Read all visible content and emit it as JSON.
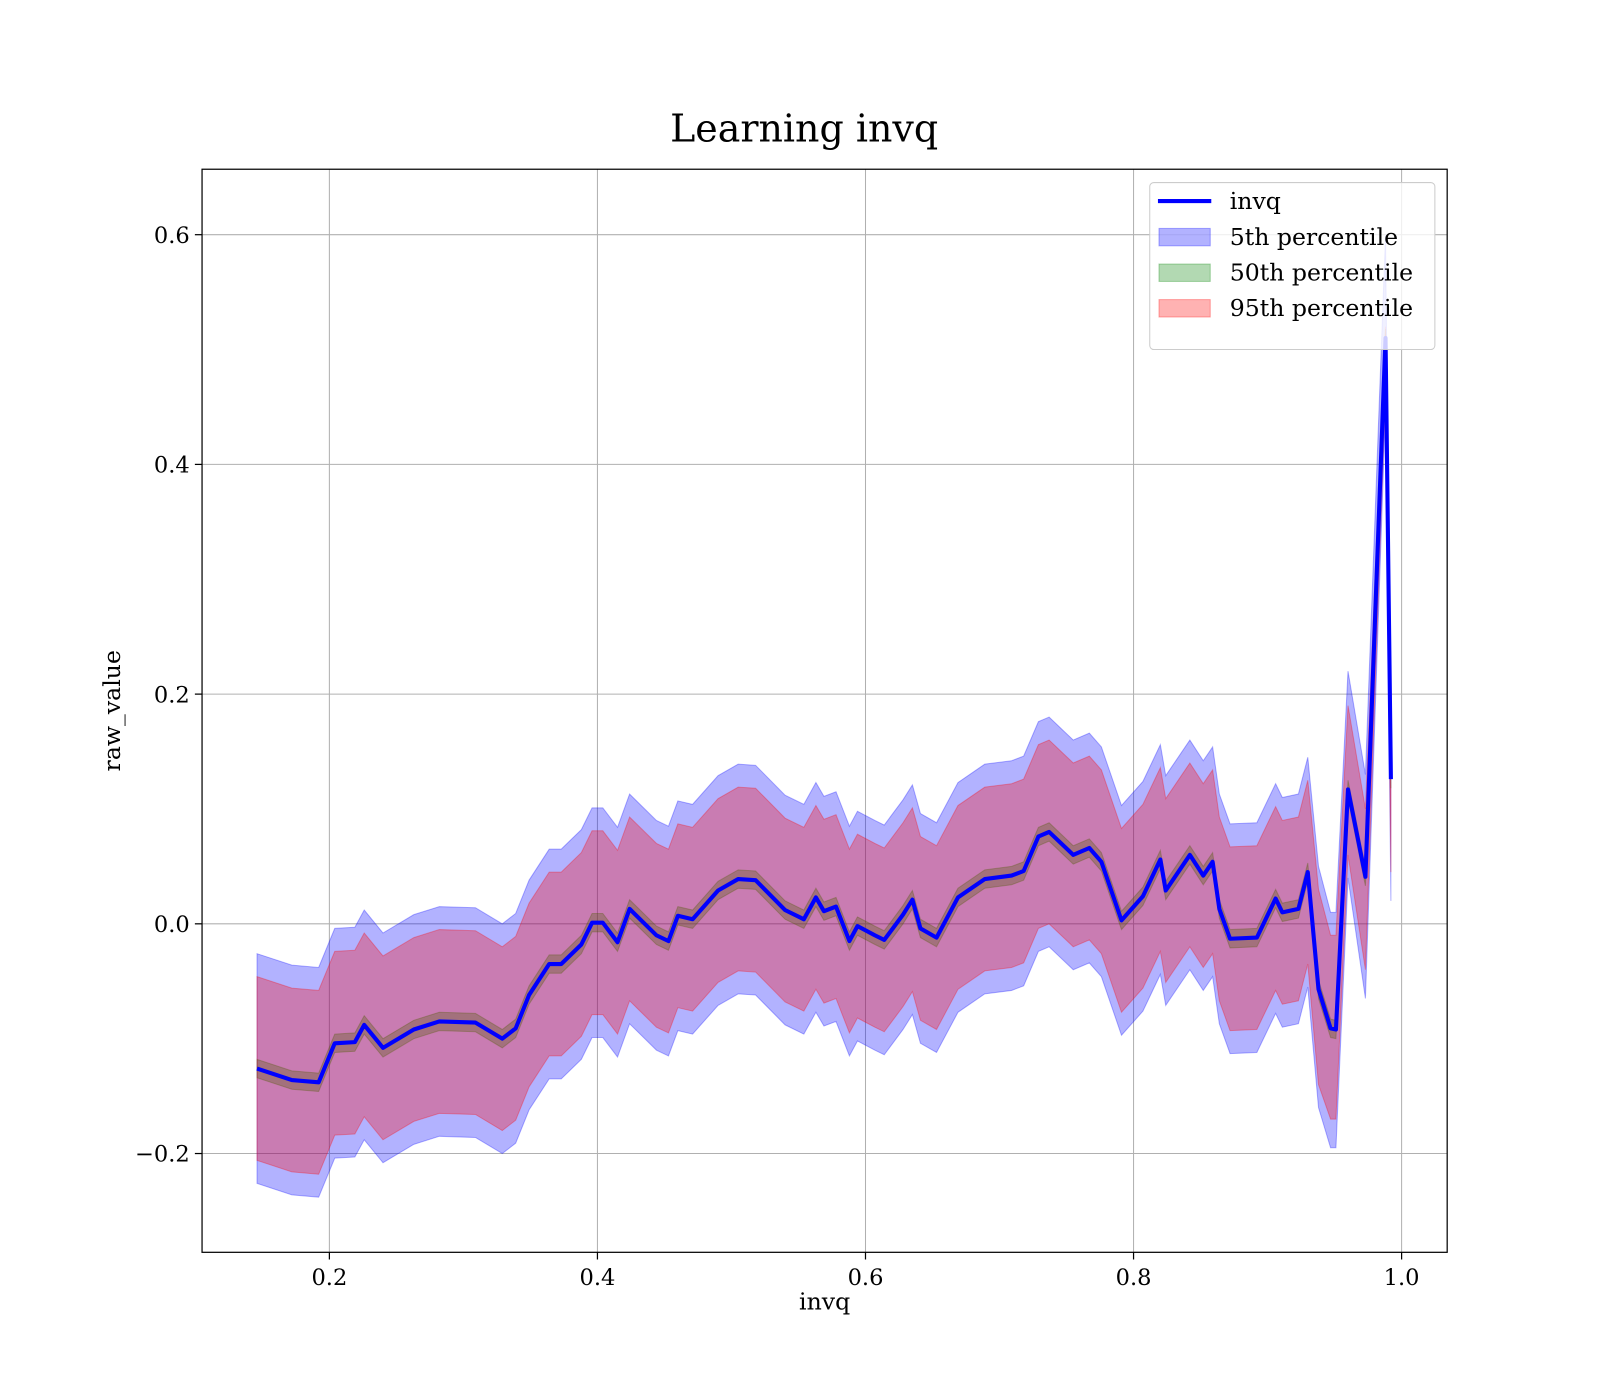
{
  "chart_data": {
    "type": "line",
    "title": "Learning invq",
    "xlabel": "invq",
    "ylabel": "raw_value",
    "x": [
      0.146,
      0.172,
      0.192,
      0.204,
      0.219,
      0.226,
      0.24,
      0.263,
      0.282,
      0.309,
      0.329,
      0.339,
      0.349,
      0.364,
      0.373,
      0.388,
      0.396,
      0.404,
      0.415,
      0.424,
      0.444,
      0.453,
      0.46,
      0.471,
      0.49,
      0.505,
      0.518,
      0.54,
      0.554,
      0.563,
      0.569,
      0.578,
      0.588,
      0.594,
      0.607,
      0.614,
      0.628,
      0.635,
      0.641,
      0.653,
      0.669,
      0.689,
      0.709,
      0.718,
      0.729,
      0.737,
      0.755,
      0.767,
      0.776,
      0.791,
      0.807,
      0.82,
      0.824,
      0.842,
      0.852,
      0.859,
      0.864,
      0.872,
      0.892,
      0.906,
      0.911,
      0.923,
      0.93,
      0.938,
      0.947,
      0.951,
      0.96,
      0.973,
      0.988,
      0.992
    ],
    "series": [
      {
        "name": "invq",
        "color": "#0000ff",
        "values": [
          -0.126,
          -0.136,
          -0.138,
          -0.104,
          -0.103,
          -0.088,
          -0.108,
          -0.092,
          -0.085,
          -0.086,
          -0.1,
          -0.091,
          -0.062,
          -0.035,
          -0.035,
          -0.018,
          0.001,
          0.001,
          -0.016,
          0.013,
          -0.01,
          -0.015,
          0.007,
          0.004,
          0.029,
          0.039,
          0.038,
          0.012,
          0.004,
          0.023,
          0.011,
          0.015,
          -0.015,
          -0.002,
          -0.01,
          -0.014,
          0.008,
          0.021,
          -0.004,
          -0.012,
          0.023,
          0.039,
          0.042,
          0.046,
          0.076,
          0.08,
          0.06,
          0.066,
          0.054,
          0.003,
          0.024,
          0.056,
          0.029,
          0.06,
          0.042,
          0.054,
          0.013,
          -0.013,
          -0.012,
          0.022,
          0.01,
          0.013,
          0.045,
          -0.057,
          -0.091,
          -0.092,
          0.117,
          0.041,
          0.51,
          0.126
        ]
      }
    ],
    "bands": [
      {
        "name": "5th percentile",
        "color": "#0000ff",
        "upper": [
          -0.026,
          -0.036,
          -0.038,
          -0.004,
          -0.003,
          0.012,
          -0.008,
          0.008,
          0.015,
          0.014,
          0.0,
          0.009,
          0.038,
          0.065,
          0.065,
          0.082,
          0.101,
          0.101,
          0.084,
          0.113,
          0.09,
          0.085,
          0.107,
          0.104,
          0.129,
          0.139,
          0.138,
          0.112,
          0.104,
          0.123,
          0.111,
          0.115,
          0.085,
          0.098,
          0.09,
          0.086,
          0.108,
          0.121,
          0.096,
          0.088,
          0.123,
          0.139,
          0.142,
          0.146,
          0.176,
          0.18,
          0.16,
          0.166,
          0.154,
          0.103,
          0.124,
          0.156,
          0.129,
          0.16,
          0.142,
          0.154,
          0.113,
          0.087,
          0.088,
          0.122,
          0.11,
          0.113,
          0.145,
          0.05,
          0.01,
          0.01,
          0.22,
          0.13,
          0.6,
          0.13
        ],
        "lower": [
          -0.226,
          -0.236,
          -0.238,
          -0.204,
          -0.203,
          -0.188,
          -0.208,
          -0.192,
          -0.185,
          -0.186,
          -0.2,
          -0.191,
          -0.162,
          -0.135,
          -0.135,
          -0.118,
          -0.099,
          -0.099,
          -0.116,
          -0.087,
          -0.11,
          -0.115,
          -0.093,
          -0.096,
          -0.071,
          -0.061,
          -0.062,
          -0.088,
          -0.096,
          -0.077,
          -0.089,
          -0.085,
          -0.115,
          -0.102,
          -0.11,
          -0.114,
          -0.092,
          -0.079,
          -0.104,
          -0.112,
          -0.077,
          -0.061,
          -0.058,
          -0.054,
          -0.024,
          -0.02,
          -0.04,
          -0.034,
          -0.046,
          -0.097,
          -0.076,
          -0.044,
          -0.071,
          -0.04,
          -0.058,
          -0.046,
          -0.087,
          -0.113,
          -0.112,
          -0.078,
          -0.09,
          -0.087,
          -0.055,
          -0.16,
          -0.195,
          -0.195,
          0.04,
          -0.065,
          0.45,
          0.02
        ]
      },
      {
        "name": "50th percentile",
        "color": "#008000",
        "upper": [
          -0.118,
          -0.128,
          -0.13,
          -0.096,
          -0.095,
          -0.08,
          -0.1,
          -0.084,
          -0.077,
          -0.078,
          -0.092,
          -0.083,
          -0.054,
          -0.027,
          -0.027,
          -0.01,
          0.009,
          0.009,
          -0.008,
          0.021,
          -0.002,
          -0.007,
          0.015,
          0.012,
          0.037,
          0.047,
          0.046,
          0.02,
          0.012,
          0.031,
          0.019,
          0.023,
          -0.007,
          0.006,
          -0.002,
          -0.006,
          0.016,
          0.029,
          0.004,
          -0.004,
          0.031,
          0.047,
          0.05,
          0.054,
          0.084,
          0.088,
          0.068,
          0.074,
          0.062,
          0.011,
          0.032,
          0.064,
          0.037,
          0.068,
          0.05,
          0.062,
          0.021,
          -0.005,
          -0.004,
          0.03,
          0.018,
          0.021,
          0.053,
          -0.049,
          -0.083,
          -0.084,
          0.125,
          0.049,
          0.518,
          0.134
        ],
        "lower": [
          -0.134,
          -0.144,
          -0.146,
          -0.112,
          -0.111,
          -0.096,
          -0.116,
          -0.1,
          -0.093,
          -0.094,
          -0.108,
          -0.099,
          -0.07,
          -0.043,
          -0.043,
          -0.026,
          -0.007,
          -0.007,
          -0.024,
          0.005,
          -0.018,
          -0.023,
          -0.001,
          -0.004,
          0.021,
          0.031,
          0.03,
          0.004,
          -0.004,
          0.015,
          0.003,
          0.007,
          -0.023,
          -0.01,
          -0.018,
          -0.022,
          0.0,
          0.013,
          -0.012,
          -0.02,
          0.015,
          0.031,
          0.034,
          0.038,
          0.068,
          0.072,
          0.052,
          0.058,
          0.046,
          -0.005,
          0.016,
          0.048,
          0.021,
          0.052,
          0.034,
          0.046,
          0.005,
          -0.021,
          -0.02,
          0.014,
          0.002,
          0.005,
          0.037,
          -0.065,
          -0.099,
          -0.1,
          0.109,
          0.033,
          0.502,
          0.118
        ]
      },
      {
        "name": "95th percentile",
        "color": "#ff0000",
        "upper": [
          -0.046,
          -0.056,
          -0.058,
          -0.024,
          -0.023,
          -0.008,
          -0.028,
          -0.012,
          -0.005,
          -0.006,
          -0.02,
          -0.011,
          0.018,
          0.045,
          0.045,
          0.062,
          0.081,
          0.081,
          0.064,
          0.093,
          0.07,
          0.065,
          0.087,
          0.084,
          0.109,
          0.119,
          0.118,
          0.092,
          0.084,
          0.103,
          0.091,
          0.095,
          0.065,
          0.078,
          0.07,
          0.066,
          0.088,
          0.101,
          0.076,
          0.068,
          0.103,
          0.119,
          0.122,
          0.126,
          0.156,
          0.16,
          0.14,
          0.146,
          0.134,
          0.083,
          0.104,
          0.136,
          0.109,
          0.14,
          0.122,
          0.134,
          0.093,
          0.067,
          0.068,
          0.102,
          0.09,
          0.093,
          0.125,
          0.03,
          -0.01,
          -0.01,
          0.19,
          0.1,
          0.52,
          0.12
        ],
        "lower": [
          -0.206,
          -0.216,
          -0.218,
          -0.184,
          -0.183,
          -0.168,
          -0.188,
          -0.172,
          -0.165,
          -0.166,
          -0.18,
          -0.171,
          -0.142,
          -0.115,
          -0.115,
          -0.098,
          -0.079,
          -0.079,
          -0.096,
          -0.067,
          -0.09,
          -0.095,
          -0.073,
          -0.076,
          -0.051,
          -0.041,
          -0.042,
          -0.068,
          -0.076,
          -0.057,
          -0.069,
          -0.065,
          -0.095,
          -0.082,
          -0.09,
          -0.094,
          -0.072,
          -0.059,
          -0.084,
          -0.092,
          -0.057,
          -0.041,
          -0.038,
          -0.034,
          -0.004,
          0.0,
          -0.02,
          -0.014,
          -0.026,
          -0.077,
          -0.056,
          -0.024,
          -0.051,
          -0.02,
          -0.038,
          -0.026,
          -0.067,
          -0.093,
          -0.092,
          -0.058,
          -0.07,
          -0.067,
          -0.035,
          -0.14,
          -0.17,
          -0.17,
          0.06,
          -0.04,
          0.47,
          0.045
        ]
      }
    ],
    "xlim": [
      0.105,
      1.034
    ],
    "ylim": [
      -0.286,
      0.657
    ],
    "xticks": [
      0.2,
      0.4,
      0.6,
      0.8,
      {
        "value": 1.0,
        "label": "1.0"
      }
    ],
    "yticks": [
      {
        "value": -0.2,
        "label": "−0.2"
      },
      {
        "value": 0.0,
        "label": "0.0"
      },
      0.2,
      0.4,
      0.6
    ],
    "grid": true,
    "legend": "upper right"
  }
}
